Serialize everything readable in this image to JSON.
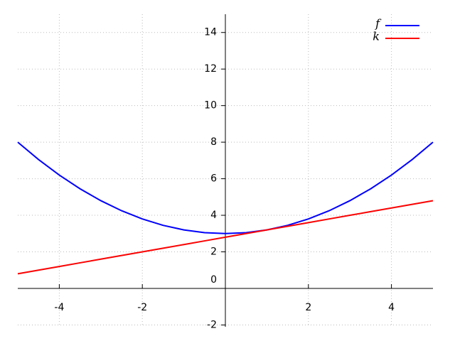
{
  "chart_data": {
    "type": "line",
    "x": [
      -5,
      -4.5,
      -4,
      -3.5,
      -3,
      -2.5,
      -2,
      -1.5,
      -1,
      -0.5,
      0,
      0.5,
      1,
      1.5,
      2,
      2.5,
      3,
      3.5,
      4,
      4.5,
      5
    ],
    "series": [
      {
        "name": "f",
        "color": "#0000ff",
        "values": [
          8,
          7.05,
          6.2,
          5.45,
          4.8,
          4.25,
          3.8,
          3.45,
          3.2,
          3.05,
          3,
          3.05,
          3.2,
          3.45,
          3.8,
          4.25,
          4.8,
          5.45,
          6.2,
          7.05,
          8
        ]
      },
      {
        "name": "k",
        "color": "#ff0000",
        "values": [
          0.8,
          1,
          1.2,
          1.4,
          1.6,
          1.8,
          2,
          2.2,
          2.4,
          2.6,
          2.8,
          3,
          3.2,
          3.4,
          3.6,
          3.8,
          4,
          4.2,
          4.4,
          4.6,
          4.8
        ]
      }
    ],
    "xlim": [
      -5,
      5
    ],
    "ylim": [
      -2.1,
      15
    ],
    "xticks": [
      -4,
      -2,
      2,
      4
    ],
    "yticks": [
      -2,
      0,
      2,
      4,
      6,
      8,
      10,
      12,
      14
    ],
    "grid": true,
    "legend": "upper right"
  }
}
